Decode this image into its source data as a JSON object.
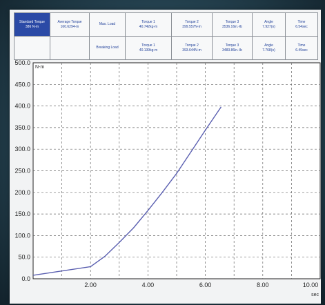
{
  "table": {
    "col1": {
      "label": "Standard Torque",
      "value": "386 N-m"
    },
    "col2": {
      "label": "Average Torque",
      "value": "160.6294-m"
    },
    "row_max_label": "Max. Load",
    "row_break_label": "Breaking Load",
    "max_cells": [
      {
        "label": "Torque 1",
        "value": "40.742kg-m"
      },
      {
        "label": "Torque 2",
        "value": "399.557N-m"
      },
      {
        "label": "Torque 3",
        "value": "3536.16in.-lb"
      },
      {
        "label": "Angle",
        "value": "7.927(o)"
      },
      {
        "label": "Time",
        "value": "6.54sec"
      }
    ],
    "break_cells": [
      {
        "label": "Torque 1",
        "value": "40.139kg-m"
      },
      {
        "label": "Torque 2",
        "value": "393.644N-m"
      },
      {
        "label": "Torque 3",
        "value": "3483.86in.-lb"
      },
      {
        "label": "Angle",
        "value": "7.768(o)"
      },
      {
        "label": "Time",
        "value": "6.49sec"
      }
    ]
  },
  "colors": {
    "header_highlight": "#2b4aa6",
    "line": "#5a5fb0",
    "grid": "#666666"
  },
  "chart_data": {
    "type": "line",
    "title": "",
    "ylabel": "N-m",
    "xlabel": "sec",
    "xlim": [
      0,
      10
    ],
    "ylim": [
      0,
      500
    ],
    "xticks": [
      "2.00",
      "4.00",
      "6.00",
      "8.00",
      "10.00"
    ],
    "yticks": [
      "0.0",
      "50.0",
      "100.0",
      "150.0",
      "200.0",
      "250.0",
      "300.0",
      "350.0",
      "400.0",
      "450.0",
      "500.0"
    ],
    "grid": true,
    "series": [
      {
        "x": [
          0,
          1,
          2,
          2.5,
          3,
          3.5,
          4,
          4.5,
          5,
          5.5,
          6,
          6.55
        ],
        "y": [
          8,
          18,
          28,
          52,
          84,
          118,
          158,
          200,
          244,
          294,
          344,
          398
        ]
      }
    ]
  }
}
